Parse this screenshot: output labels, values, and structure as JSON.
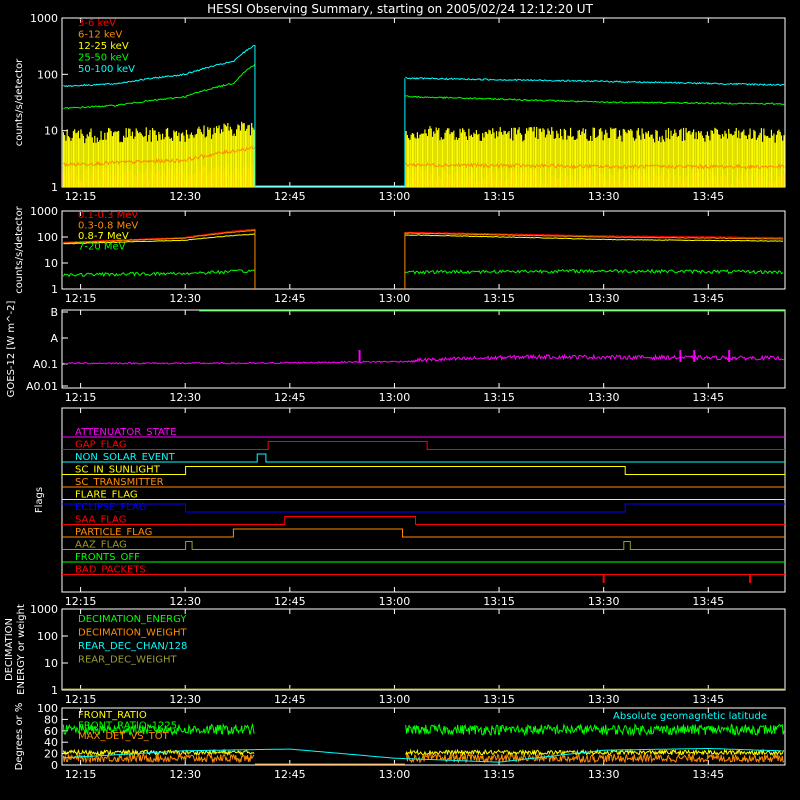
{
  "title": "HESSI Observing Summary, starting on 2005/02/24 12:12:20 UT",
  "time_ticks": [
    "12:15",
    "12:30",
    "12:45",
    "13:00",
    "13:15",
    "13:30",
    "13:45"
  ],
  "colors": {
    "red": "#ff0000",
    "orange": "#ff8c00",
    "yellow": "#ffff00",
    "green": "#00ff00",
    "cyan": "#00ffff",
    "magenta": "#ff00ff",
    "blue": "#0000ff",
    "olive": "#9b9b2e",
    "white": "#ffffff"
  },
  "chart_data": [
    {
      "type": "line",
      "ylabel": "counts/s/detector",
      "yscale": "log",
      "ylim": [
        1,
        1000
      ],
      "y_ticks": [
        "1",
        "10",
        "100",
        "1000"
      ],
      "x_time_range": [
        "12:12:20",
        "13:56"
      ],
      "data_gap": [
        "12:40",
        "13:01"
      ],
      "series": [
        {
          "name": "3-6 keV",
          "color": "#ff0000",
          "x": [
            "12:13",
            "12:30",
            "12:40",
            "13:02",
            "13:30",
            "13:55"
          ],
          "values": [
            1.8,
            1.8,
            2.0,
            1.8,
            1.5,
            1.4
          ]
        },
        {
          "name": "6-12 keV",
          "color": "#ff8c00",
          "x": [
            "12:13",
            "12:30",
            "12:40",
            "13:02",
            "13:30",
            "13:55"
          ],
          "values": [
            2.5,
            3.0,
            5.0,
            2.5,
            2.3,
            2.3
          ]
        },
        {
          "name": "12-25 keV",
          "color": "#ffff00",
          "x": [
            "12:13",
            "12:30",
            "12:40",
            "13:02",
            "13:30",
            "13:55"
          ],
          "values": [
            8.5,
            9.0,
            12.0,
            9.5,
            9.0,
            8.5
          ]
        },
        {
          "name": "25-50 keV",
          "color": "#00ff00",
          "x": [
            "12:13",
            "12:20",
            "12:30",
            "12:37",
            "12:40",
            "13:02",
            "13:30",
            "13:55"
          ],
          "values": [
            25,
            28,
            40,
            70,
            150,
            40,
            32,
            30
          ]
        },
        {
          "name": "50-100 keV",
          "color": "#00ffff",
          "x": [
            "12:13",
            "12:20",
            "12:30",
            "12:37",
            "12:40",
            "13:02",
            "13:30",
            "13:55"
          ],
          "values": [
            62,
            68,
            100,
            170,
            330,
            85,
            75,
            65
          ]
        }
      ]
    },
    {
      "type": "line",
      "ylabel": "counts/s/detector",
      "yscale": "log",
      "ylim": [
        1,
        1000
      ],
      "y_ticks": [
        "1",
        "10",
        "100",
        "1000"
      ],
      "series": [
        {
          "name": "0.1-0.3 MeV",
          "color": "#ff0000",
          "x": [
            "12:13",
            "12:30",
            "12:40",
            "13:02",
            "13:30",
            "13:55"
          ],
          "values": [
            62,
            95,
            200,
            150,
            110,
            95
          ]
        },
        {
          "name": "0.3-0.8 MeV",
          "color": "#ff8c00",
          "x": [
            "12:13",
            "12:30",
            "12:40",
            "13:02",
            "13:30",
            "13:55"
          ],
          "values": [
            58,
            90,
            180,
            140,
            100,
            85
          ]
        },
        {
          "name": "0.8-7 MeV",
          "color": "#ffff00",
          "x": [
            "12:13",
            "12:30",
            "12:40",
            "13:02",
            "13:30",
            "13:55"
          ],
          "values": [
            55,
            75,
            130,
            120,
            80,
            70
          ]
        },
        {
          "name": "7-20 MeV",
          "color": "#00ff00",
          "x": [
            "12:13",
            "12:30",
            "12:40",
            "13:02",
            "13:30",
            "13:55"
          ],
          "values": [
            3.5,
            4.0,
            5.0,
            4.5,
            5.0,
            4.5
          ]
        }
      ]
    },
    {
      "type": "line",
      "ylabel": "GOES-12 [W m^-2]",
      "y_ticks": [
        "A0.01",
        "A0.1",
        "A",
        "B"
      ],
      "series": [
        {
          "name": "GOES",
          "color": "#ff00ff",
          "x": [
            "12:13",
            "12:40",
            "13:05",
            "13:20",
            "13:55"
          ],
          "values": [
            0.1,
            0.1,
            0.12,
            0.16,
            0.14
          ]
        }
      ]
    },
    {
      "type": "table",
      "ylabel": "Flags",
      "rows": [
        {
          "name": "ATTENUATOR_STATE",
          "color": "#ff00ff",
          "state": [
            [
              0,
              0
            ]
          ]
        },
        {
          "name": "GAP_FLAG",
          "color": "#ff0000",
          "state": [
            [
              0,
              0
            ],
            [
              0.285,
              1
            ],
            [
              0.505,
              0
            ]
          ]
        },
        {
          "name": "NON_SOLAR_EVENT",
          "color": "#00ffff",
          "state": [
            [
              0,
              0
            ],
            [
              0.27,
              1
            ],
            [
              0.282,
              0
            ]
          ]
        },
        {
          "name": "SC_IN_SUNLIGHT",
          "color": "#ffff00",
          "state": [
            [
              0,
              0
            ],
            [
              0.171,
              1
            ],
            [
              0.779,
              0
            ]
          ]
        },
        {
          "name": "SC_TRANSMITTER",
          "color": "#ff8c00",
          "state": [
            [
              0,
              0
            ]
          ]
        },
        {
          "name": "FLARE_FLAG",
          "color": "#ffff00",
          "state": [
            [
              0,
              0
            ]
          ]
        },
        {
          "name": "ECLIPSE_FLAG",
          "color": "#0000ff",
          "state": [
            [
              0,
              1
            ],
            [
              0.171,
              0
            ],
            [
              0.779,
              1
            ]
          ]
        },
        {
          "name": "SAA_FLAG",
          "color": "#ff0000",
          "state": [
            [
              0,
              0
            ],
            [
              0.308,
              1
            ],
            [
              0.489,
              0
            ]
          ]
        },
        {
          "name": "PARTICLE_FLAG",
          "color": "#ff8c00",
          "state": [
            [
              0,
              0
            ],
            [
              0.237,
              1
            ],
            [
              0.471,
              0
            ]
          ]
        },
        {
          "name": "AAZ_FLAG",
          "color": "#9b9b2e",
          "state": [
            [
              0,
              0
            ],
            [
              0.171,
              1
            ],
            [
              0.18,
              0
            ],
            [
              0.777,
              1
            ],
            [
              0.786,
              0
            ]
          ]
        },
        {
          "name": "FRONTS_OFF",
          "color": "#00ff00",
          "state": [
            [
              0,
              0
            ]
          ]
        },
        {
          "name": "BAD_PACKETS",
          "color": "#ff0000",
          "state": [
            [
              0,
              0
            ]
          ]
        }
      ]
    },
    {
      "type": "line",
      "ylabel": "DECIMATION ENERGY or weight",
      "yscale": "log",
      "ylim": [
        1,
        1000
      ],
      "y_ticks": [
        "1",
        "10",
        "100",
        "1000"
      ],
      "series": [
        {
          "name": "DECIMATION_ENERGY",
          "color": "#00ff00",
          "values": []
        },
        {
          "name": "DECIMATION_WEIGHT",
          "color": "#ff8c00",
          "values": []
        },
        {
          "name": "REAR_DEC_CHAN/128",
          "color": "#00ffff",
          "values": []
        },
        {
          "name": "REAR_DEC_WEIGHT",
          "color": "#9b9b2e",
          "values": []
        }
      ]
    },
    {
      "type": "line",
      "ylabel": "Degrees or %",
      "ylim": [
        0,
        100
      ],
      "y_ticks": [
        "0",
        "20",
        "40",
        "60",
        "80",
        "100"
      ],
      "annotation": "Absolute geomagnetic latitude",
      "series": [
        {
          "name": "FRONT_RATIO",
          "color": "#ffff00",
          "x": [
            "12:13",
            "12:40",
            "13:02",
            "13:55"
          ],
          "values": [
            22,
            22,
            22,
            22
          ]
        },
        {
          "name": "FRONT_RATIO_1225",
          "color": "#00ff00",
          "x": [
            "12:13",
            "12:40",
            "13:02",
            "13:55"
          ],
          "values": [
            62,
            62,
            62,
            62
          ]
        },
        {
          "name": "MAX_DET_VS_TOT",
          "color": "#ff8c00",
          "x": [
            "12:13",
            "12:40",
            "13:02",
            "13:55"
          ],
          "values": [
            12,
            12,
            12,
            12
          ]
        },
        {
          "name": "Absolute geomagnetic latitude",
          "color": "#00ffff",
          "x": [
            "12:13",
            "12:30",
            "12:45",
            "13:00",
            "13:15",
            "13:30",
            "13:45",
            "13:55"
          ],
          "values": [
            13,
            25,
            28,
            12,
            5,
            26,
            29,
            25
          ]
        }
      ]
    }
  ]
}
